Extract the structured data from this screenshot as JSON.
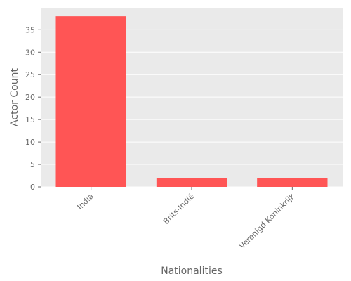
{
  "chart_data": {
    "type": "bar",
    "categories": [
      "India",
      "Brits-Indië",
      "Verenigd Koninkrijk"
    ],
    "values": [
      38,
      2,
      2
    ],
    "xlabel": "Nationalities",
    "ylabel": "Actor Count",
    "ylim": [
      0,
      39.9
    ],
    "yticks": [
      0,
      5,
      10,
      15,
      20,
      25,
      30,
      35
    ],
    "grid": true,
    "colors": {
      "bar": "#FF5555",
      "plot_background": "#EAEAEA",
      "grid": "#FFFFFF",
      "text": "#666666"
    }
  }
}
